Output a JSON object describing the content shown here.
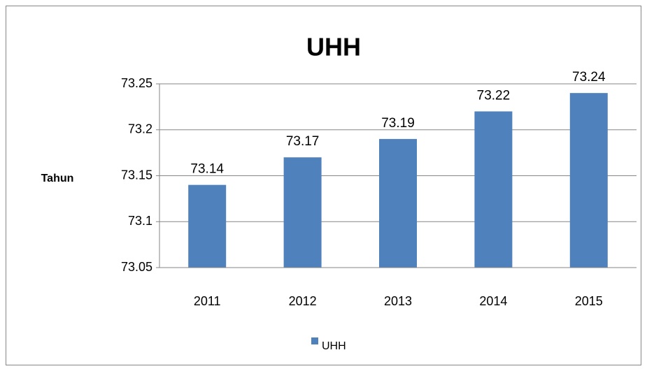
{
  "chart_data": {
    "type": "bar",
    "title": "UHH",
    "y_label": "Tahun",
    "categories": [
      "2011",
      "2012",
      "2013",
      "2014",
      "2015"
    ],
    "series": [
      {
        "name": "UHH",
        "color": "#4f81bd",
        "values": [
          73.14,
          73.17,
          73.19,
          73.22,
          73.24
        ]
      }
    ],
    "ylim": [
      73.05,
      73.25
    ],
    "yticks": [
      73.05,
      73.1,
      73.15,
      73.2,
      73.25
    ],
    "grid": true,
    "legend": "bottom"
  }
}
